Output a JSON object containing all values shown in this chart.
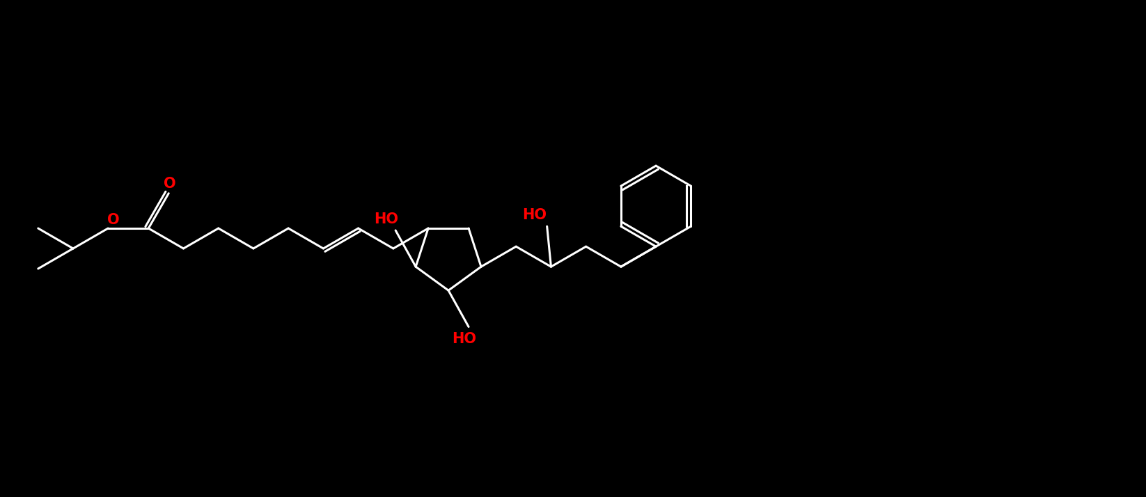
{
  "bg_color": "#000000",
  "bond_color": "#ffffff",
  "oxygen_color": "#ff0000",
  "lw": 2.2,
  "figsize": [
    16.46,
    7.14
  ],
  "dpi": 100,
  "xlim": [
    0,
    1646
  ],
  "ylim": [
    0,
    714
  ]
}
